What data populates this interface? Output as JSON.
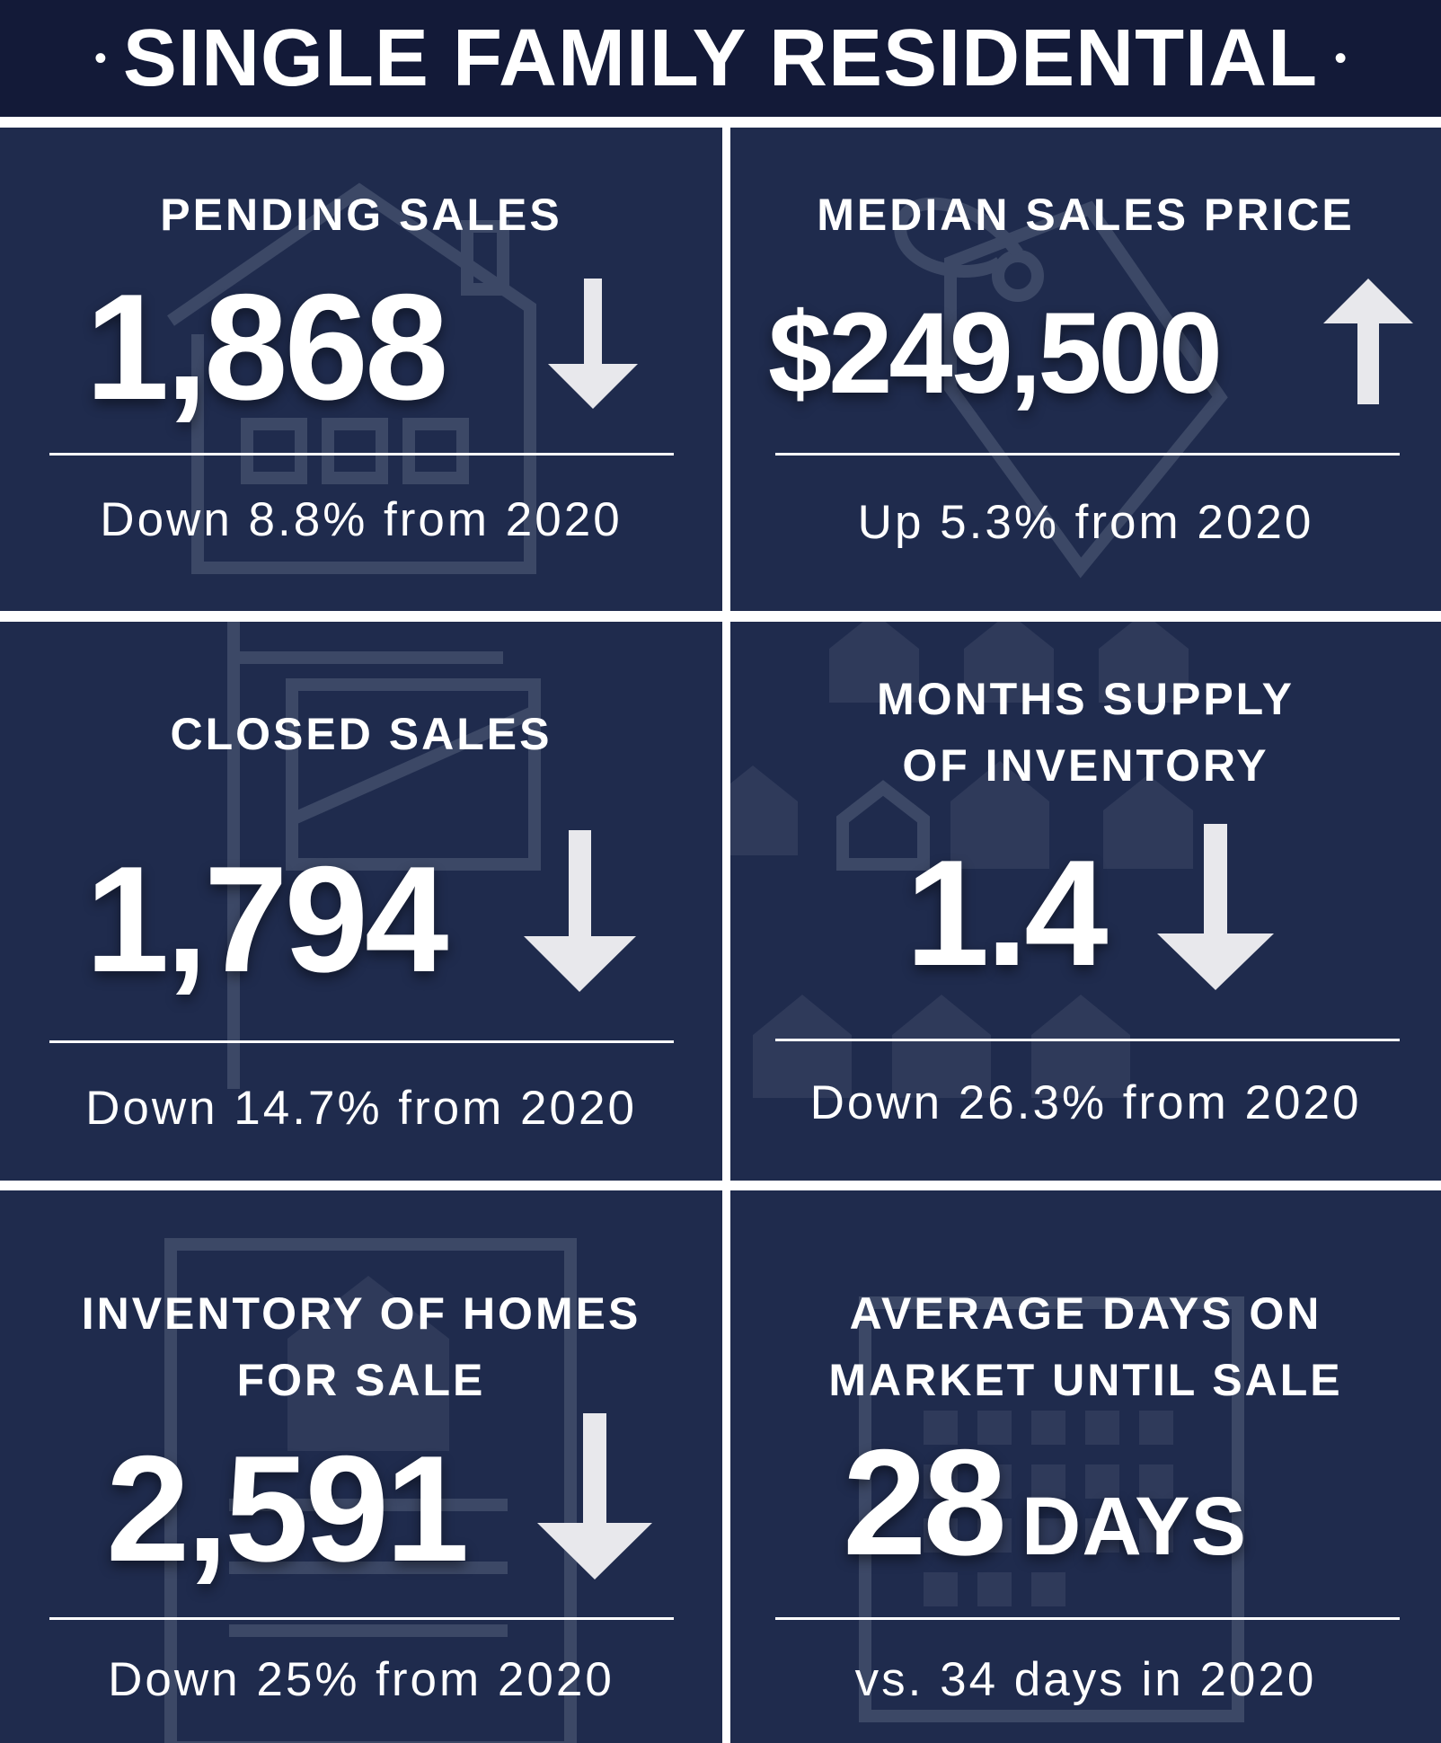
{
  "header": {
    "title": "SINGLE FAMILY RESIDENTIAL",
    "dot": "•"
  },
  "stats": {
    "pending": {
      "label": "PENDING SALES",
      "value": "1,868",
      "change": "Down 8.8% from 2020",
      "trend": "down",
      "icon": "house-icon"
    },
    "median_price": {
      "label": "MEDIAN SALES PRICE",
      "value": "$249,500",
      "change": "Up 5.3% from 2020",
      "trend": "up",
      "icon": "price-tag-icon"
    },
    "closed": {
      "label": "CLOSED SALES",
      "value": "1,794",
      "change": "Down 14.7% from 2020",
      "trend": "down",
      "icon": "sale-sign-icon"
    },
    "months_supply": {
      "label_line1": "MONTHS SUPPLY",
      "label_line2": "OF INVENTORY",
      "value": "1.4",
      "change": "Down 26.3% from 2020",
      "trend": "down",
      "icon": "houses-icon"
    },
    "inventory": {
      "label_line1": "INVENTORY OF HOMES",
      "label_line2": "FOR SALE",
      "value": "2,591",
      "change": "Down 25% from 2020",
      "trend": "down",
      "icon": "listing-icon"
    },
    "days_on_market": {
      "label_line1": "AVERAGE DAYS ON",
      "label_line2": "MARKET UNTIL SALE",
      "value": "28",
      "unit": "DAYS",
      "change": "vs. 34 days in 2020",
      "icon": "calendar-icon"
    }
  },
  "colors": {
    "header_bg": "#131a38",
    "panel_bg": "#1f2b4d",
    "text": "#ffffff",
    "arrow": "#e8e8ec",
    "icon": "#3c4866"
  }
}
